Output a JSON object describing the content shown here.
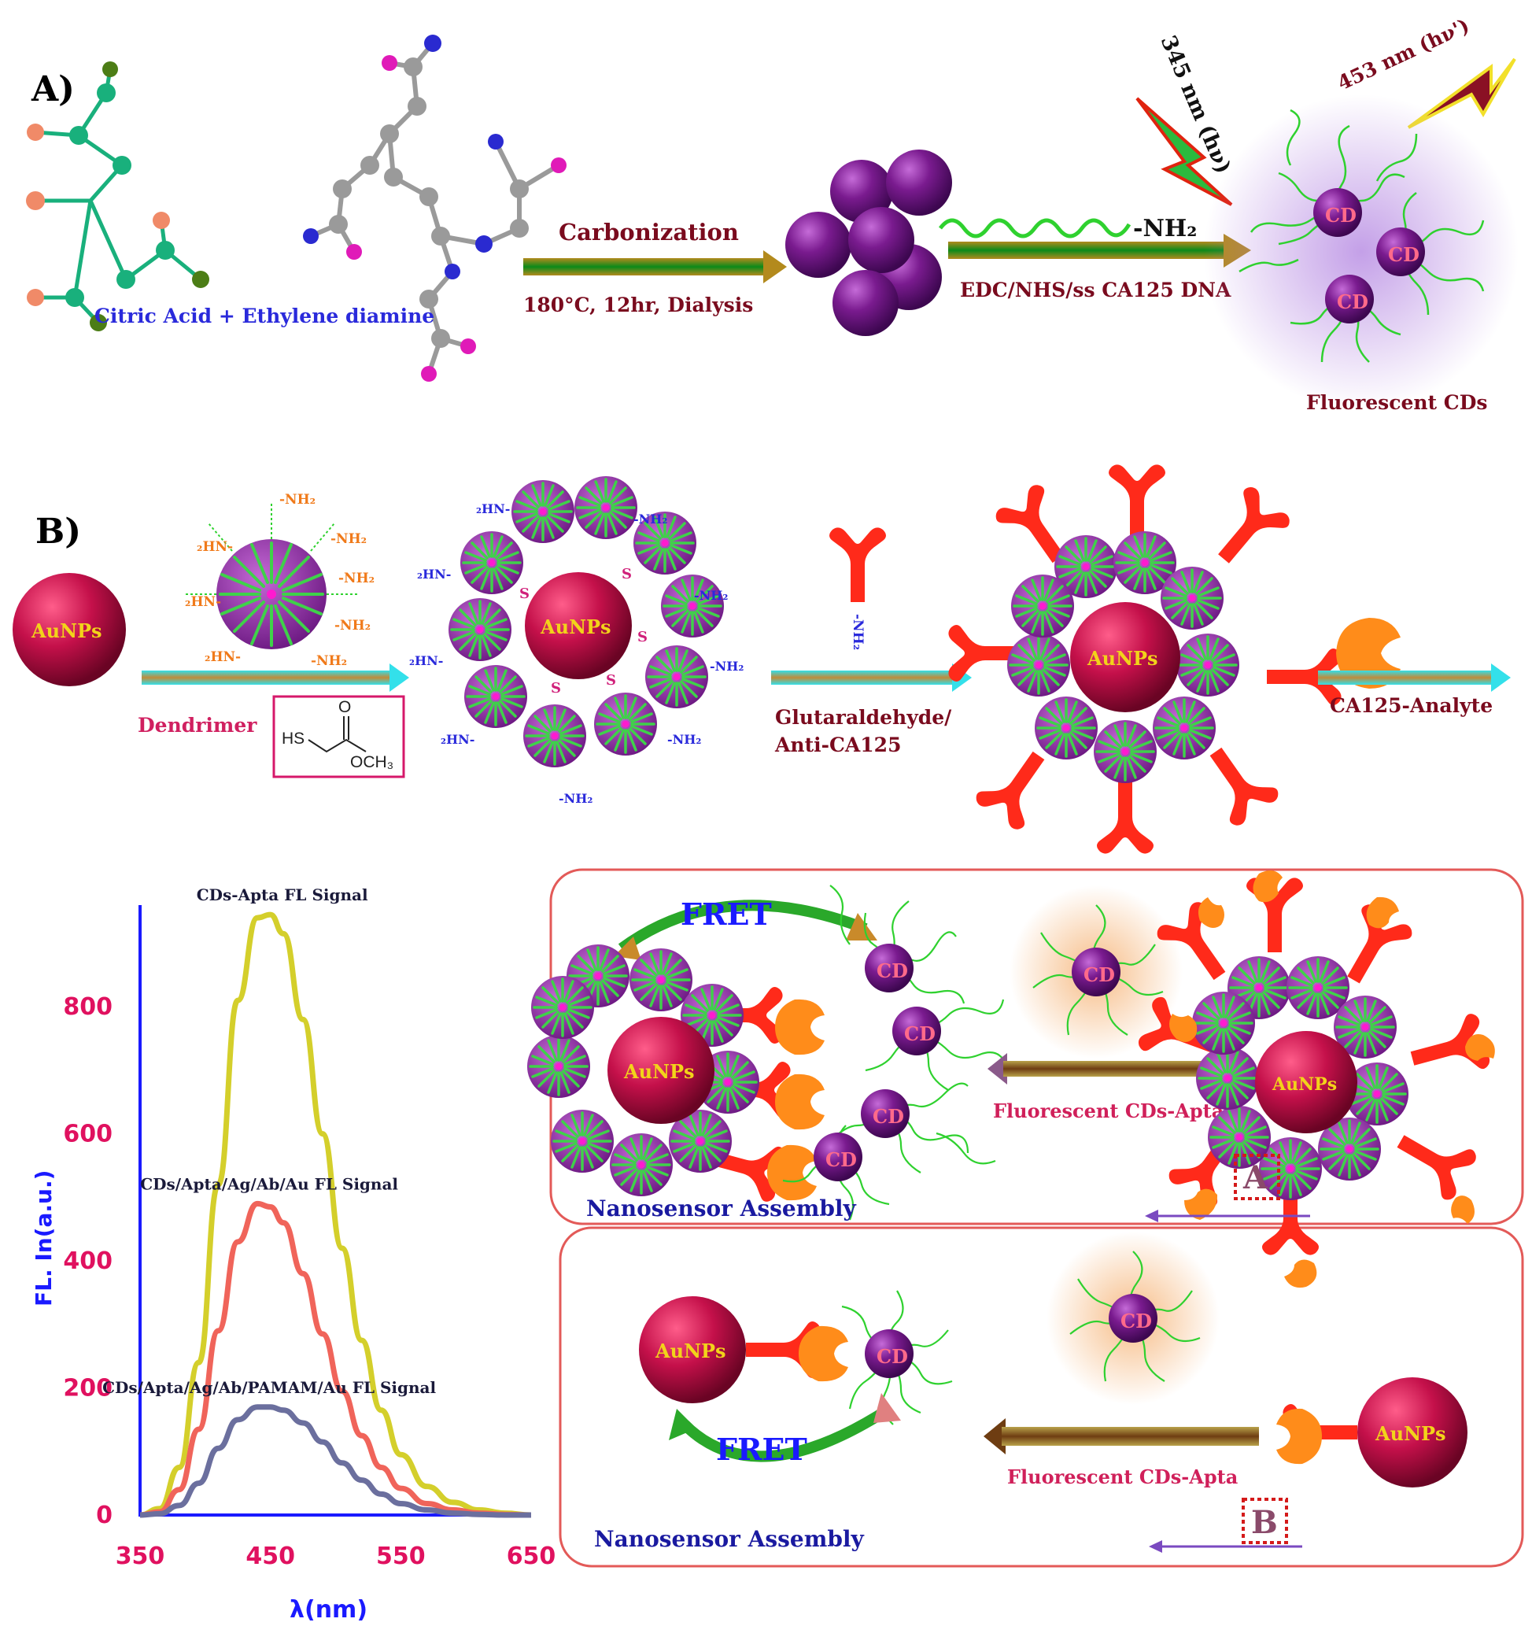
{
  "panel_a": {
    "letter": "A)",
    "reactants_label": "Citric Acid + Ethylene diamine",
    "step1_top": "Carbonization",
    "step1_bottom": "180°C, 12hr, Dialysis",
    "amine_tag": "-NH₂",
    "step2_bottom": "EDC/NHS/ss CA125 DNA",
    "excitation": "345 nm (hν)",
    "emission": "453 nm (hν')",
    "cd_label": "CD",
    "product_label": "Fluorescent CDs"
  },
  "panel_b": {
    "letter": "B)",
    "aunp_label": "AuNPs",
    "dendrimer_label": "Dendrimer",
    "nh2_label": "-NH₂",
    "nh2_left_label": "₂HN-",
    "thiol_hs": "HS",
    "thiol_o": "O",
    "thiol_och3": "OCH₃",
    "sulfur_label": "S",
    "step_glutar_1": "Glutaraldehyde/",
    "step_glutar_2": "Anti-CA125",
    "analyte_label": "CA125-Analyte"
  },
  "chart_data": {
    "type": "line",
    "xlabel": "λ(nm)",
    "ylabel": "FL. In(a.u.)",
    "xlim": [
      350,
      650
    ],
    "ylim": [
      0,
      960
    ],
    "x_ticks": [
      350,
      450,
      550,
      650
    ],
    "y_ticks": [
      0,
      200,
      400,
      600,
      800
    ],
    "colors": {
      "axis": "#1a1aff",
      "ticks": "#e0115f"
    },
    "x": [
      350,
      365,
      380,
      395,
      410,
      425,
      440,
      450,
      460,
      475,
      490,
      505,
      520,
      535,
      550,
      570,
      590,
      610,
      630,
      650
    ],
    "series": [
      {
        "name": "CDs-Apta FL Signal",
        "color": "#d4cf2b",
        "values": [
          0,
          10,
          75,
          240,
          520,
          810,
          940,
          945,
          915,
          780,
          600,
          420,
          275,
          165,
          95,
          45,
          20,
          8,
          3,
          0
        ]
      },
      {
        "name": "CDs/Apta/Ag/Ab/Au FL Signal",
        "color": "#f0645a",
        "values": [
          0,
          5,
          40,
          135,
          290,
          430,
          490,
          485,
          460,
          380,
          285,
          195,
          125,
          75,
          42,
          18,
          8,
          3,
          1,
          0
        ]
      },
      {
        "name": "CDs/Apta/Ag/Ab/PAMAM/Au FL Signal",
        "color": "#6b6f9e",
        "values": [
          0,
          2,
          15,
          50,
          105,
          150,
          170,
          170,
          165,
          145,
          115,
          82,
          55,
          33,
          18,
          8,
          3,
          1,
          0,
          0
        ]
      }
    ]
  },
  "panel_c": {
    "fret_label": "FRET",
    "arrow_label": "Fluorescent CDs-Apta",
    "assembly_label": "Nanosensor Assembly",
    "box_a": "A",
    "box_b": "B",
    "cd_label": "CD",
    "aunp_label": "AuNPs"
  }
}
